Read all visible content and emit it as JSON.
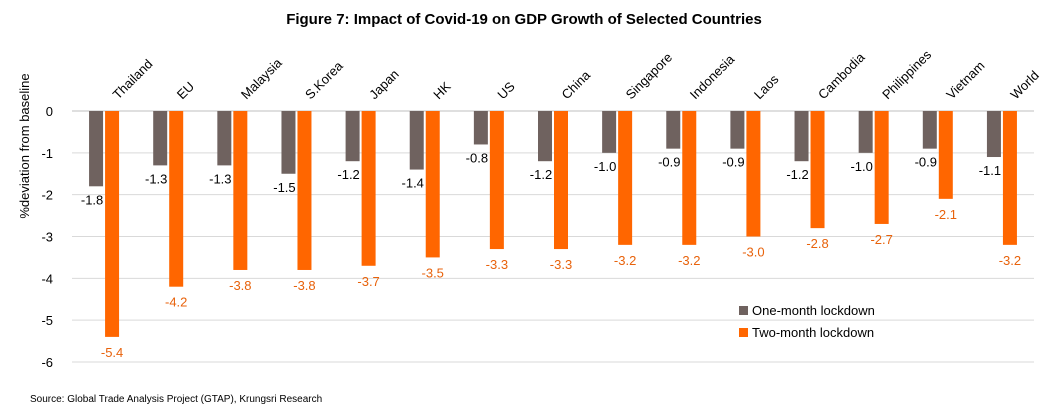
{
  "chart_data": {
    "type": "bar",
    "title": "Figure 7: Impact of Covid-19 on GDP Growth of Selected Countries",
    "ylabel": "%deviation from baseline",
    "ylim": [
      -6,
      0
    ],
    "yticks": [
      0,
      -1,
      -2,
      -3,
      -4,
      -5,
      -6
    ],
    "grid": true,
    "legend_position": "bottom-right",
    "categories": [
      "Thailand",
      "EU",
      "Malaysia",
      "S.Korea",
      "Japan",
      "HK",
      "US",
      "China",
      "Singapore",
      "Indonesia",
      "Laos",
      "Cambodia",
      "Philippines",
      "Vietnam",
      "World"
    ],
    "series": [
      {
        "name": "One-month lockdown",
        "color": "#6f625f",
        "label_color": "#000000",
        "values": [
          -1.8,
          -1.3,
          -1.3,
          -1.5,
          -1.2,
          -1.4,
          -0.8,
          -1.2,
          -1.0,
          -0.9,
          -0.9,
          -1.2,
          -1.0,
          -0.9,
          -1.1
        ]
      },
      {
        "name": "Two-month lockdown",
        "color": "#ff6600",
        "label_color": "#e8620b",
        "values": [
          -5.4,
          -4.2,
          -3.8,
          -3.8,
          -3.7,
          -3.5,
          -3.3,
          -3.3,
          -3.2,
          -3.2,
          -3.0,
          -2.8,
          -2.7,
          -2.1,
          -3.2
        ]
      }
    ],
    "source": "Source: Global Trade Analysis Project (GTAP), Krungsri Research"
  }
}
